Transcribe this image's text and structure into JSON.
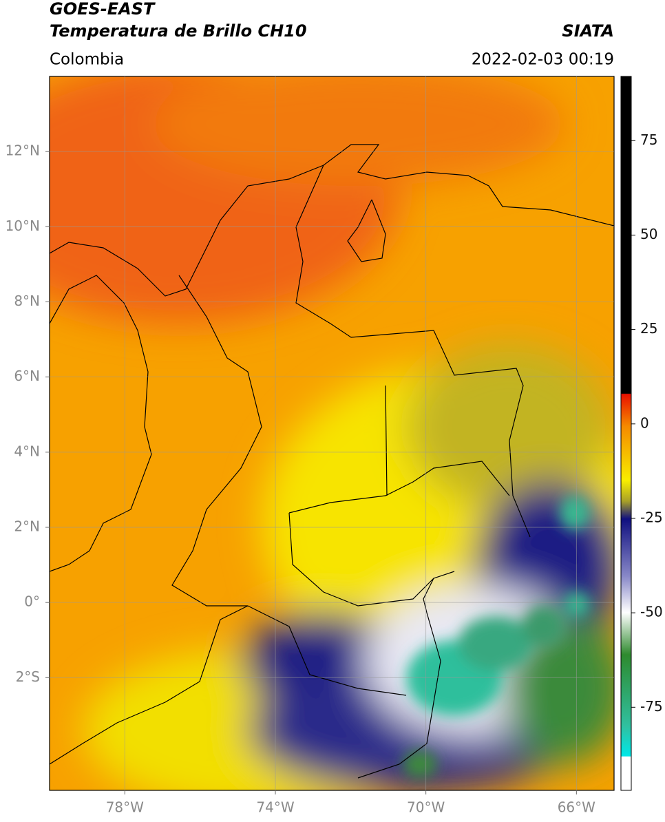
{
  "header": {
    "title": "GOES-EAST",
    "subtitle": "Temperatura de Brillo CH10",
    "region": "Colombia",
    "source": "SIATA",
    "timestamp": "2022-02-03 00:19"
  },
  "map": {
    "lon_range": [
      -80,
      -65
    ],
    "lat_range": [
      -5,
      14
    ],
    "lon_ticks": [
      {
        "value": -78,
        "label": "78°W"
      },
      {
        "value": -74,
        "label": "74°W"
      },
      {
        "value": -70,
        "label": "70°W"
      },
      {
        "value": -66,
        "label": "66°W"
      }
    ],
    "lat_ticks": [
      {
        "value": 12,
        "label": "12°N"
      },
      {
        "value": 10,
        "label": "10°N"
      },
      {
        "value": 8,
        "label": "8°N"
      },
      {
        "value": 6,
        "label": "6°N"
      },
      {
        "value": 4,
        "label": "4°N"
      },
      {
        "value": 2,
        "label": "2°N"
      },
      {
        "value": 0,
        "label": "0°"
      },
      {
        "value": -2,
        "label": "2°S"
      }
    ]
  },
  "colorbar": {
    "range": [
      -97,
      92
    ],
    "ticks": [
      75,
      50,
      25,
      0,
      -25,
      -50,
      -75
    ]
  }
}
